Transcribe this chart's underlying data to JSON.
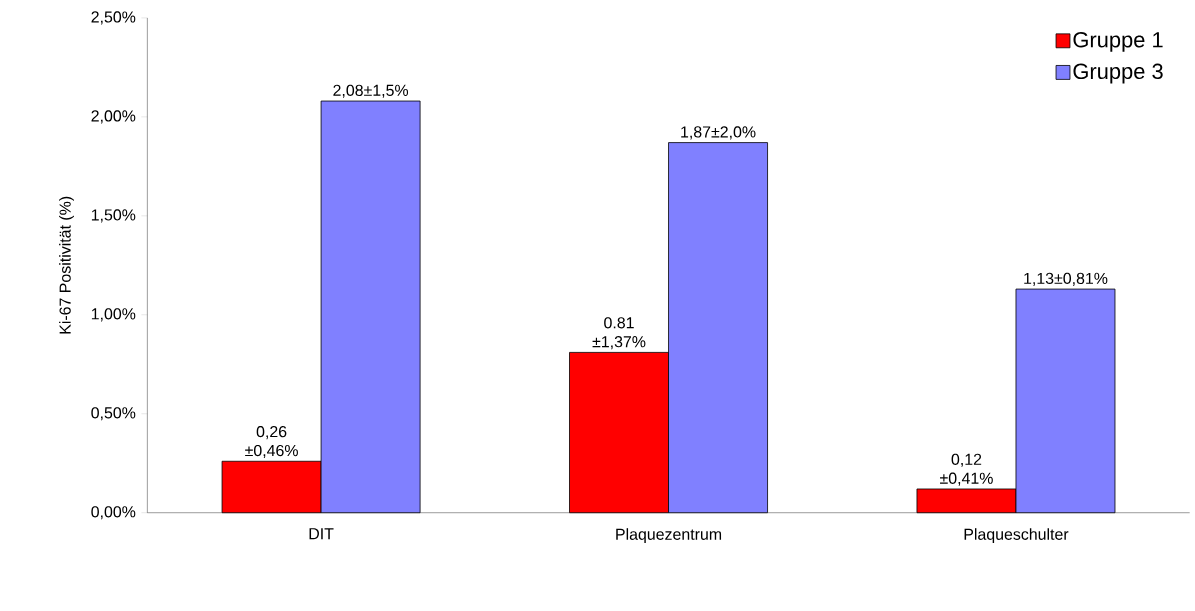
{
  "chart_data": {
    "type": "bar",
    "ylabel": "Ki-67 Positivität (%)",
    "categories": [
      "DIT",
      "Plaquezentrum",
      "Plaqueschulter"
    ],
    "series": [
      {
        "name": "Gruppe 1",
        "color": "#ff0000",
        "values": [
          0.26,
          0.81,
          0.12
        ],
        "value_labels": [
          "0,26 ±0,46%",
          "0.81 ±1,37%",
          "0,12 ±0,41%"
        ]
      },
      {
        "name": "Gruppe 3",
        "color": "#8080ff",
        "values": [
          2.08,
          1.87,
          1.13
        ],
        "value_labels": [
          "2,08±1,5%",
          "1,87±2,0%",
          "1,13±0,81%"
        ]
      }
    ],
    "ylim": [
      0,
      2.5
    ],
    "yticks": [
      {
        "value": 0,
        "label": "0,00%"
      },
      {
        "value": 0.5,
        "label": "0,50%"
      },
      {
        "value": 1,
        "label": "1,00%"
      },
      {
        "value": 1.5,
        "label": "1,50%"
      },
      {
        "value": 2,
        "label": "2,00%"
      },
      {
        "value": 2.5,
        "label": "2,50%"
      }
    ],
    "grid": false,
    "legend": "top right"
  }
}
